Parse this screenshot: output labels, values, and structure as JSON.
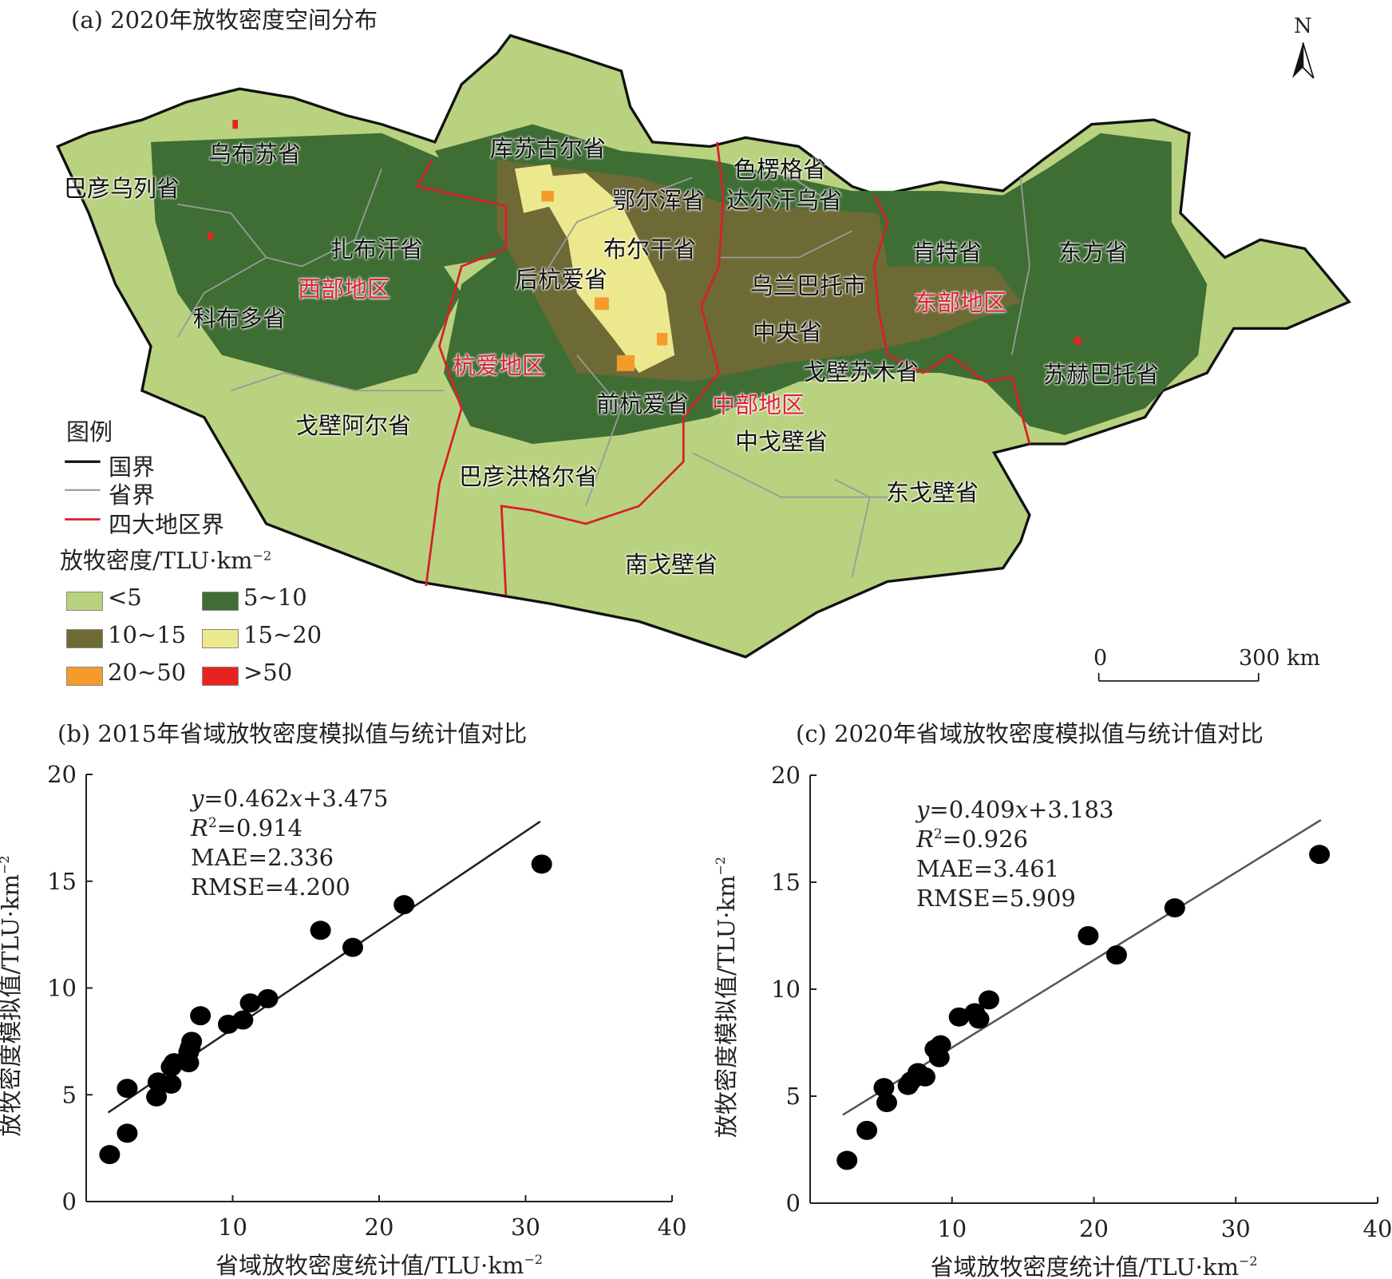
{
  "map": {
    "title": "(a) 2020年放牧密度空间分布",
    "north": "N",
    "provinces": [
      "乌布苏省",
      "巴彦乌列省",
      "库苏古尔省",
      "色楞格省",
      "鄂尔浑省",
      "达尔汗乌省",
      "扎布汗省",
      "布尔干省",
      "肯特省",
      "东方省",
      "后杭爱省",
      "乌兰巴托市",
      "科布多省",
      "中央省",
      "戈壁苏木省",
      "苏赫巴托省",
      "前杭爱省",
      "戈壁阿尔省",
      "中戈壁省",
      "巴彦洪格尔省",
      "东戈壁省",
      "南戈壁省"
    ],
    "regions": [
      "西部地区",
      "东部地区",
      "杭爱地区",
      "中部地区"
    ],
    "legend": {
      "title": "图例",
      "lines": [
        "国界",
        "省界",
        "四大地区界"
      ],
      "density_title": "放牧密度/TLU·km",
      "density_sup": "−2",
      "classes": [
        {
          "label": "<5",
          "color": "#b9d27f"
        },
        {
          "label": "5~10",
          "color": "#3e6e34"
        },
        {
          "label": "10~15",
          "color": "#6d6a35"
        },
        {
          "label": "15~20",
          "color": "#ece88e"
        },
        {
          "label": "20~50",
          "color": "#f59b2c"
        },
        {
          "label": ">50",
          "color": "#e8231f"
        }
      ]
    },
    "scale": {
      "start": "0",
      "end": "300 km"
    },
    "colors": {
      "border": "#111111",
      "province": "#9a9a9a",
      "region": "#d8202a"
    }
  },
  "chart_data": [
    {
      "type": "scatter",
      "title": "(b) 2015年省域放牧密度模拟值与统计值对比",
      "xlabel": "省域放牧密度统计值/TLU·km",
      "ylabel": "放牧密度模拟值/TLU·km",
      "unit_sup": "−2",
      "xlim": [
        0,
        40
      ],
      "ylim": [
        0,
        20
      ],
      "xticks": [
        "10",
        "20",
        "30",
        "40"
      ],
      "yticks": [
        "0",
        "5",
        "10",
        "15",
        "20"
      ],
      "fit": {
        "slope": 0.462,
        "intercept": 3.475,
        "xrange": [
          1.5,
          31
        ]
      },
      "annotations": {
        "eq": "=0.462",
        "eqx": "x",
        "eqend": "+3.475",
        "eqy": "y",
        "r2": "=0.914",
        "mae": "MAE=2.336",
        "rmse": "RMSE=4.200"
      },
      "points": [
        [
          1.6,
          2.2
        ],
        [
          2.8,
          3.2
        ],
        [
          2.8,
          5.3
        ],
        [
          4.8,
          4.9
        ],
        [
          4.9,
          5.6
        ],
        [
          5.8,
          5.5
        ],
        [
          5.8,
          6.3
        ],
        [
          6.0,
          6.5
        ],
        [
          7.0,
          6.5
        ],
        [
          7.0,
          7.0
        ],
        [
          7.1,
          7.2
        ],
        [
          7.2,
          7.5
        ],
        [
          7.8,
          8.7
        ],
        [
          9.7,
          8.3
        ],
        [
          10.7,
          8.5
        ],
        [
          11.2,
          9.3
        ],
        [
          12.4,
          9.5
        ],
        [
          16.0,
          12.7
        ],
        [
          18.2,
          11.9
        ],
        [
          21.7,
          13.9
        ],
        [
          31.1,
          15.8
        ]
      ]
    },
    {
      "type": "scatter",
      "title": "(c) 2020年省域放牧密度模拟值与统计值对比",
      "xlabel": "省域放牧密度统计值/TLU·km",
      "ylabel": "放牧密度模拟值/TLU·km",
      "unit_sup": "−2",
      "xlim": [
        0,
        40
      ],
      "ylim": [
        0,
        20
      ],
      "xticks": [
        "10",
        "20",
        "30",
        "40"
      ],
      "yticks": [
        "0",
        "5",
        "10",
        "15",
        "20"
      ],
      "fit": {
        "slope": 0.409,
        "intercept": 3.183,
        "xrange": [
          2.3,
          36
        ]
      },
      "annotations": {
        "eq": "=0.409",
        "eqx": "x",
        "eqend": "+3.183",
        "eqy": "y",
        "r2": "=0.926",
        "mae": "MAE=3.461",
        "rmse": "RMSE=5.909"
      },
      "points": [
        [
          2.6,
          2.0
        ],
        [
          4.0,
          3.4
        ],
        [
          5.2,
          5.4
        ],
        [
          5.4,
          4.7
        ],
        [
          6.9,
          5.5
        ],
        [
          7.1,
          5.7
        ],
        [
          7.6,
          6.1
        ],
        [
          8.1,
          5.9
        ],
        [
          8.8,
          7.2
        ],
        [
          9.2,
          7.4
        ],
        [
          9.1,
          6.8
        ],
        [
          10.5,
          8.7
        ],
        [
          11.6,
          8.9
        ],
        [
          11.9,
          8.6
        ],
        [
          12.6,
          9.5
        ],
        [
          19.6,
          12.5
        ],
        [
          21.6,
          11.6
        ],
        [
          25.7,
          13.8
        ],
        [
          35.9,
          16.3
        ]
      ]
    }
  ]
}
